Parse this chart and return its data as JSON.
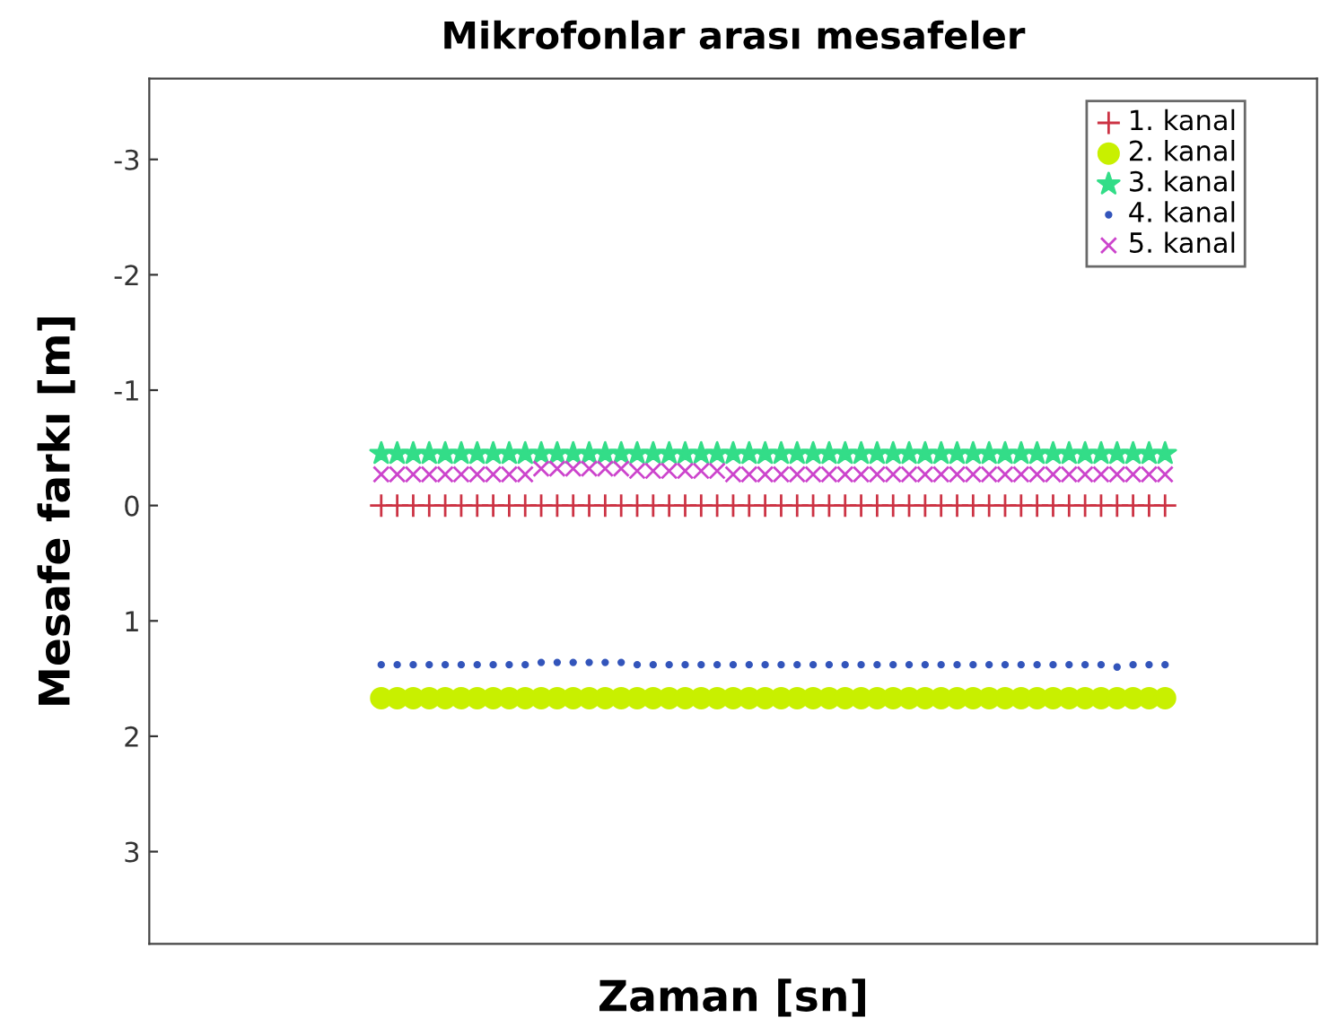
{
  "chart_data": {
    "type": "scatter",
    "title": "Mikrofonlar arası mesafeler",
    "xlabel": "Zaman [sn]",
    "ylabel": "Mesafe farkı [m]",
    "categories": [
      null,
      null,
      null,
      null,
      null,
      null,
      null,
      null,
      null,
      null,
      null,
      null,
      null,
      null,
      null,
      null,
      null,
      null,
      null,
      null,
      null,
      null,
      null,
      null,
      null,
      null,
      null,
      null,
      null,
      null,
      null,
      null,
      null,
      null,
      null,
      null,
      null,
      null,
      null,
      null,
      null,
      null,
      null,
      null,
      null,
      null,
      null,
      null,
      null,
      null,
      null,
      null,
      null,
      null,
      null,
      null,
      null,
      null,
      null,
      null,
      null,
      null,
      null,
      null,
      null,
      null,
      null,
      null,
      null,
      null,
      null,
      null,
      null
    ],
    "ylim": [
      3.8,
      -3.7
    ],
    "yticks": [
      -3,
      -2,
      -1,
      0,
      1,
      2,
      3
    ],
    "tick_labels": "y",
    "grid": false,
    "legend": "top right",
    "series": [
      {
        "name": "1. kanal",
        "color": "#cc3344",
        "marker": "plus",
        "values": [
          null,
          null,
          null,
          null,
          null,
          null,
          null,
          null,
          null,
          null,
          null,
          null,
          null,
          null,
          0,
          0,
          0,
          0,
          0,
          0,
          0,
          0,
          0,
          0,
          0,
          0,
          0,
          0,
          0,
          0,
          0,
          0,
          0,
          0,
          0,
          0,
          0,
          0,
          0,
          0,
          0,
          0,
          0,
          0,
          0,
          0,
          0,
          0,
          0,
          0,
          0,
          0,
          0,
          0,
          0,
          0,
          0,
          0,
          0,
          0,
          0,
          0,
          0,
          0,
          null,
          null,
          null,
          null,
          null,
          null,
          null,
          null,
          null
        ]
      },
      {
        "name": "2. kanal",
        "color": "#c8f000",
        "marker": "circle",
        "values": [
          null,
          null,
          null,
          null,
          null,
          null,
          null,
          null,
          null,
          null,
          null,
          null,
          null,
          null,
          1.67,
          1.67,
          1.67,
          1.67,
          1.67,
          1.67,
          1.67,
          1.67,
          1.67,
          1.67,
          1.67,
          1.67,
          1.67,
          1.67,
          1.67,
          1.67,
          1.67,
          1.67,
          1.67,
          1.67,
          1.67,
          1.67,
          1.67,
          1.67,
          1.67,
          1.67,
          1.67,
          1.67,
          1.67,
          1.67,
          1.67,
          1.67,
          1.67,
          1.67,
          1.67,
          1.67,
          1.67,
          1.67,
          1.67,
          1.67,
          1.67,
          1.67,
          1.67,
          1.67,
          1.67,
          1.67,
          1.67,
          1.67,
          1.67,
          1.67,
          null,
          null,
          null,
          null,
          null,
          null,
          null,
          null,
          null
        ]
      },
      {
        "name": "3. kanal",
        "color": "#33dd88",
        "marker": "star",
        "values": [
          null,
          null,
          null,
          null,
          null,
          null,
          null,
          null,
          null,
          null,
          null,
          null,
          null,
          null,
          -0.45,
          -0.45,
          -0.45,
          -0.45,
          -0.45,
          -0.45,
          -0.45,
          -0.45,
          -0.45,
          -0.45,
          -0.45,
          -0.45,
          -0.45,
          -0.45,
          -0.45,
          -0.45,
          -0.45,
          -0.45,
          -0.45,
          -0.45,
          -0.45,
          -0.45,
          -0.45,
          -0.45,
          -0.45,
          -0.45,
          -0.45,
          -0.45,
          -0.45,
          -0.45,
          -0.45,
          -0.45,
          -0.45,
          -0.45,
          -0.45,
          -0.45,
          -0.45,
          -0.45,
          -0.45,
          -0.45,
          -0.45,
          -0.45,
          -0.45,
          -0.45,
          -0.45,
          -0.45,
          -0.45,
          -0.45,
          -0.45,
          -0.45,
          null,
          null,
          null,
          null,
          null,
          null,
          null,
          null,
          null
        ]
      },
      {
        "name": "4. kanal",
        "color": "#3355bb",
        "marker": "point",
        "values": [
          null,
          null,
          null,
          null,
          null,
          null,
          null,
          null,
          null,
          null,
          null,
          null,
          null,
          null,
          1.38,
          1.38,
          1.38,
          1.38,
          1.38,
          1.38,
          1.38,
          1.38,
          1.38,
          1.38,
          1.36,
          1.36,
          1.36,
          1.36,
          1.36,
          1.36,
          1.38,
          1.38,
          1.38,
          1.38,
          1.38,
          1.38,
          1.38,
          1.38,
          1.38,
          1.38,
          1.38,
          1.38,
          1.38,
          1.38,
          1.38,
          1.38,
          1.38,
          1.38,
          1.38,
          1.38,
          1.38,
          1.38,
          1.38,
          1.38,
          1.38,
          1.38,
          1.38,
          1.38,
          1.38,
          1.38,
          1.4,
          1.38,
          1.38,
          1.38,
          null,
          null,
          null,
          null,
          null,
          null,
          null,
          null,
          null
        ]
      },
      {
        "name": "5. kanal",
        "color": "#cc44cc",
        "marker": "x",
        "values": [
          null,
          null,
          null,
          null,
          null,
          null,
          null,
          null,
          null,
          null,
          null,
          null,
          null,
          null,
          -0.27,
          -0.27,
          -0.27,
          -0.27,
          -0.27,
          -0.27,
          -0.27,
          -0.27,
          -0.27,
          -0.27,
          -0.32,
          -0.32,
          -0.32,
          -0.32,
          -0.32,
          -0.32,
          -0.3,
          -0.3,
          -0.3,
          -0.3,
          -0.3,
          -0.3,
          -0.27,
          -0.27,
          -0.27,
          -0.27,
          -0.27,
          -0.27,
          -0.27,
          -0.27,
          -0.27,
          -0.27,
          -0.27,
          -0.27,
          -0.27,
          -0.27,
          -0.27,
          -0.27,
          -0.27,
          -0.27,
          -0.27,
          -0.27,
          -0.27,
          -0.27,
          -0.27,
          -0.27,
          -0.27,
          -0.27,
          -0.27,
          -0.27,
          null,
          null,
          null,
          null,
          null,
          null,
          null,
          null,
          null
        ]
      }
    ]
  }
}
